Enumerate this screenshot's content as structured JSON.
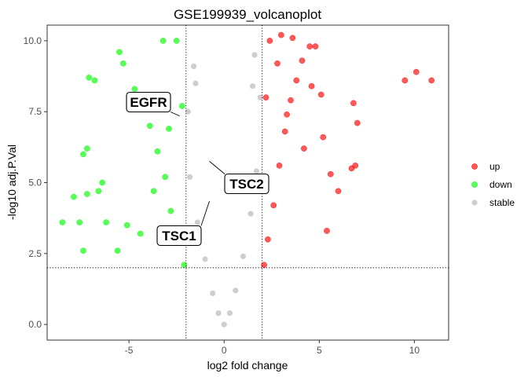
{
  "chart_data": {
    "type": "scatter",
    "title": "GSE199939_volcanoplot",
    "xlabel": "log2 fold change",
    "ylabel": "-log10 adj.P.Val",
    "xlim": [
      -9.3,
      11.8
    ],
    "ylim": [
      -0.55,
      10.55
    ],
    "x_ticks": [
      -5,
      0,
      5,
      10
    ],
    "y_ticks": [
      0.0,
      2.5,
      5.0,
      7.5,
      10.0
    ],
    "x_tick_labels": [
      "-5",
      "0",
      "5",
      "10"
    ],
    "y_tick_labels": [
      "0.0",
      "2.5",
      "5.0",
      "7.5",
      "10.0"
    ],
    "thresholds": {
      "log2fc": [
        -2,
        2
      ],
      "neg_log10_p": 2
    },
    "grid": false,
    "legend_position": "right",
    "series": [
      {
        "name": "up",
        "color": "#ff0000",
        "points": [
          [
            2.1,
            2.1
          ],
          [
            2.3,
            3.0
          ],
          [
            2.6,
            4.2
          ],
          [
            2.9,
            5.6
          ],
          [
            3.2,
            6.8
          ],
          [
            3.5,
            7.9
          ],
          [
            3.8,
            8.6
          ],
          [
            4.1,
            9.3
          ],
          [
            4.5,
            9.8
          ],
          [
            2.4,
            10.0
          ],
          [
            3.0,
            10.2
          ],
          [
            3.6,
            10.1
          ],
          [
            4.8,
            9.8
          ],
          [
            5.1,
            8.1
          ],
          [
            5.2,
            6.6
          ],
          [
            5.6,
            5.3
          ],
          [
            6.0,
            4.7
          ],
          [
            5.4,
            3.3
          ],
          [
            6.7,
            5.5
          ],
          [
            6.9,
            5.6
          ],
          [
            6.8,
            7.8
          ],
          [
            7.0,
            7.1
          ],
          [
            9.5,
            8.6
          ],
          [
            10.1,
            8.9
          ],
          [
            10.9,
            8.6
          ],
          [
            2.2,
            8.0
          ],
          [
            2.8,
            9.2
          ],
          [
            3.3,
            7.4
          ],
          [
            4.2,
            6.2
          ],
          [
            4.6,
            8.4
          ]
        ]
      },
      {
        "name": "down",
        "color": "#00ff00",
        "points": [
          [
            -2.1,
            2.1
          ],
          [
            -2.4,
            3.1
          ],
          [
            -2.8,
            4.0
          ],
          [
            -3.1,
            5.2
          ],
          [
            -3.5,
            6.1
          ],
          [
            -3.9,
            7.0
          ],
          [
            -4.3,
            7.8
          ],
          [
            -4.7,
            8.3
          ],
          [
            -5.3,
            9.2
          ],
          [
            -5.5,
            9.6
          ],
          [
            -5.1,
            3.5
          ],
          [
            -5.6,
            2.6
          ],
          [
            -6.2,
            3.6
          ],
          [
            -6.4,
            5.0
          ],
          [
            -6.6,
            4.7
          ],
          [
            -7.2,
            6.2
          ],
          [
            -7.4,
            6.0
          ],
          [
            -7.2,
            4.6
          ],
          [
            -7.6,
            3.6
          ],
          [
            -7.9,
            4.5
          ],
          [
            -8.5,
            3.6
          ],
          [
            -7.4,
            2.6
          ],
          [
            -6.8,
            8.6
          ],
          [
            -7.1,
            8.7
          ],
          [
            -3.2,
            10.0
          ],
          [
            -2.5,
            10.0
          ],
          [
            -2.9,
            6.9
          ],
          [
            -3.7,
            4.7
          ],
          [
            -4.4,
            3.2
          ],
          [
            -2.2,
            7.7
          ]
        ]
      },
      {
        "name": "stable",
        "color": "#bebebe",
        "points": [
          [
            0.0,
            0.0
          ],
          [
            -0.3,
            0.4
          ],
          [
            0.3,
            0.4
          ],
          [
            -0.6,
            1.1
          ],
          [
            0.6,
            1.2
          ],
          [
            -1.0,
            2.3
          ],
          [
            1.0,
            2.4
          ],
          [
            -1.4,
            3.6
          ],
          [
            1.4,
            3.9
          ],
          [
            -1.8,
            5.2
          ],
          [
            1.7,
            5.4
          ],
          [
            -1.9,
            7.5
          ],
          [
            1.9,
            8.0
          ],
          [
            -1.5,
            8.5
          ],
          [
            1.5,
            8.4
          ],
          [
            -1.6,
            9.1
          ],
          [
            1.6,
            9.5
          ]
        ]
      }
    ],
    "annotations": [
      {
        "label": "EGFR",
        "x": -2.33,
        "y": 7.35
      },
      {
        "label": "TSC2",
        "x": -0.77,
        "y": 5.75
      },
      {
        "label": "TSC1",
        "x": -0.77,
        "y": 4.35
      }
    ]
  }
}
